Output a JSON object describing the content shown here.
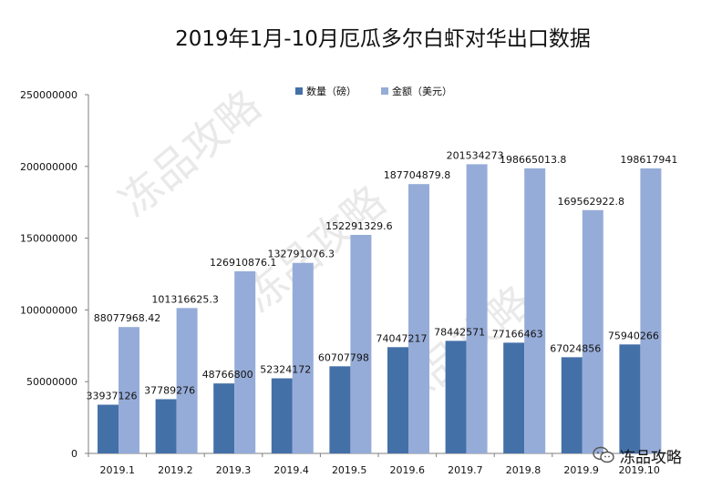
{
  "chart_data": {
    "type": "bar",
    "title": "2019年1月-10月厄瓜多尔白虾对华出口数据",
    "categories": [
      "2019.1",
      "2019.2",
      "2019.3",
      "2019.4",
      "2019.5",
      "2019.6",
      "2019.7",
      "2019.8",
      "2019.9",
      "2019.10"
    ],
    "series": [
      {
        "name": "数量（磅）",
        "color": "#4470a8",
        "values": [
          33937126,
          37789276,
          48766800,
          52324172,
          60707798,
          74047217,
          78442571,
          77166463,
          67024856,
          75940266
        ],
        "labels": [
          "33937126",
          "37789276",
          "48766800",
          "52324172",
          "60707798",
          "74047217",
          "78442571",
          "77166463",
          "67024856",
          "75940266"
        ]
      },
      {
        "name": "金额（美元）",
        "color": "#96acd8",
        "values": [
          88077968.42,
          101316625.3,
          126910876.1,
          132791076.3,
          152291329.6,
          187704879.8,
          201534273,
          198665013.8,
          169562922.8,
          198617941
        ],
        "labels": [
          "88077968.42",
          "101316625.3",
          "126910876.1",
          "132791076.3",
          "152291329.6",
          "187704879.8",
          "201534273",
          "198665013.8",
          "169562922.8",
          "198617941"
        ]
      }
    ],
    "yticks": [
      "0",
      "50000000",
      "100000000",
      "150000000",
      "200000000",
      "250000000"
    ],
    "ylim": [
      0,
      250000000
    ],
    "xlabel": "",
    "ylabel": "",
    "legend_position": "top-center",
    "grid": false
  },
  "watermark": {
    "text": "冻品攻略"
  },
  "brand": {
    "text": "冻品攻略",
    "icon": "wechat-icon"
  }
}
